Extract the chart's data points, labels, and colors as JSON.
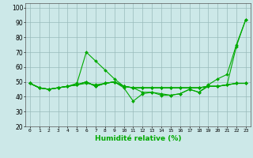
{
  "xlabel": "Humidité relative (%)",
  "bg_color": "#cce8e8",
  "grid_color": "#99bbbb",
  "line_color": "#00aa00",
  "xlim": [
    -0.5,
    23.5
  ],
  "ylim": [
    20,
    103
  ],
  "yticks": [
    20,
    30,
    40,
    50,
    60,
    70,
    80,
    90,
    100
  ],
  "xtick_labels": [
    "0",
    "1",
    "2",
    "3",
    "4",
    "5",
    "6",
    "7",
    "8",
    "9",
    "10",
    "11",
    "12",
    "13",
    "14",
    "15",
    "16",
    "17",
    "18",
    "19",
    "20",
    "21",
    "22",
    "23"
  ],
  "series": [
    [
      49,
      46,
      45,
      46,
      47,
      49,
      70,
      64,
      58,
      52,
      47,
      46,
      43,
      43,
      41,
      41,
      42,
      45,
      43,
      48,
      52,
      55,
      75,
      92
    ],
    [
      49,
      46,
      45,
      46,
      47,
      48,
      50,
      47,
      49,
      50,
      46,
      37,
      42,
      43,
      42,
      41,
      42,
      45,
      43,
      47,
      47,
      48,
      74,
      92
    ],
    [
      49,
      46,
      45,
      46,
      47,
      48,
      50,
      47,
      49,
      50,
      47,
      46,
      46,
      46,
      46,
      46,
      46,
      46,
      46,
      47,
      47,
      48,
      49,
      49
    ],
    [
      49,
      46,
      45,
      46,
      47,
      48,
      50,
      47,
      49,
      50,
      47,
      46,
      46,
      46,
      46,
      46,
      46,
      46,
      46,
      47,
      47,
      48,
      49,
      49
    ],
    [
      49,
      46,
      45,
      46,
      47,
      48,
      49,
      48,
      49,
      50,
      47,
      46,
      46,
      46,
      46,
      46,
      46,
      46,
      46,
      47,
      47,
      48,
      49,
      49
    ]
  ]
}
